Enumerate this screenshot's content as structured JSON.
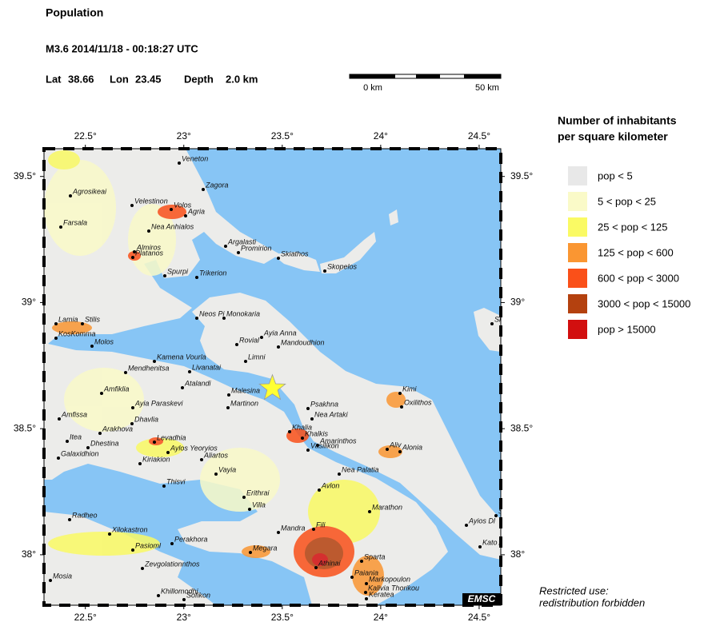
{
  "header": {
    "title": "Population",
    "event": "M3.6  2014/11/18 - 00:18:27 UTC",
    "lat_label": "Lat",
    "lat": 38.66,
    "lon_label": "Lon",
    "lon": 23.45,
    "depth_label": "Depth",
    "depth": "2.0 km"
  },
  "scale_bar": {
    "start": "0 km",
    "end": "50 km"
  },
  "map": {
    "lonlim": [
      22.29,
      24.61
    ],
    "latlim": [
      37.8,
      39.61
    ],
    "lonticks": [
      {
        "value": 22.5,
        "label": "22.5°"
      },
      {
        "value": 23,
        "label": "23°"
      },
      {
        "value": 23.5,
        "label": "23.5°"
      },
      {
        "value": 24,
        "label": "24°"
      },
      {
        "value": 24.5,
        "label": "24.5°"
      }
    ],
    "latticks": [
      {
        "value": 38,
        "label": "38°"
      },
      {
        "value": 38.5,
        "label": "38.5°"
      },
      {
        "value": 39,
        "label": "39°"
      },
      {
        "value": 39.5,
        "label": "39.5°"
      }
    ],
    "epicenter_color": "#ffff33",
    "cities": [
      "Veneton",
      "Zagora",
      "Agrosikeai",
      "Velestinon",
      "Volos",
      "Agria",
      "Farsala",
      "Nea Anhialos",
      "Argalasti",
      "Promirion",
      "Almiros",
      "Platanos",
      "Skiathos",
      "Skopelos",
      "Spurpi",
      "Trikerion",
      "Neos Pi",
      "Monokaria",
      "Stilis",
      "Lamia",
      "KosKomma",
      "Molos",
      "Ayia Anna",
      "Rovial",
      "Mandoudhion",
      "Kamena Vourla",
      "Limni",
      "Mendhenitsa",
      "Livanatai",
      "Atalandi",
      "Amfiklia",
      "Malesina",
      "Kimi",
      "Psakhna",
      "Ayia Paraskevi",
      "Martinon",
      "Oxilithos",
      "Nea Artaki",
      "Amfissa",
      "Dhavlia",
      "Arakhova",
      "Khalia",
      "Khalkis",
      "Amarinthos",
      "Levadhia",
      "Itea",
      "Dhestina",
      "Aliv",
      "Alonia",
      "Vasilikon",
      "Aylos Yeoryios",
      "Galaxidhion",
      "Kiriakion",
      "Aliartos",
      "Vayia",
      "Nea Palatia",
      "Thisvi",
      "Erithrai",
      "Avlon",
      "Villa",
      "Radheo",
      "Marathon",
      "Xilokastron",
      "Fili",
      "Mandra",
      "Ayios Dl",
      "Perakhora",
      "Pasioml",
      "Megara",
      "Sparta",
      "Kato A",
      "Zevgolationnthos",
      "Athinai",
      "Paiania",
      "Markopoulon",
      "Mosia",
      "Kalivia Thorikou",
      "Khillomodhi",
      "Sofikon",
      "Keratea",
      "Sk",
      "Sh"
    ],
    "credit": "EMSC"
  },
  "legend": {
    "title": [
      "Number of inhabitants",
      "per square kilometer"
    ],
    "items": [
      {
        "label": "pop < 5",
        "color": "#e8e8e8"
      },
      {
        "label": "5 < pop < 25",
        "color": "#fafac8"
      },
      {
        "label": "25 < pop < 125",
        "color": "#fafa64"
      },
      {
        "label": "125 < pop < 600",
        "color": "#fa9632"
      },
      {
        "label": "600 < pop < 3000",
        "color": "#fa5019"
      },
      {
        "label": "3000 < pop < 15000",
        "color": "#b4410f"
      },
      {
        "label": "pop > 15000",
        "color": "#d20f0f"
      }
    ]
  },
  "footer": [
    "Restricted use:",
    "redistribution forbidden"
  ]
}
